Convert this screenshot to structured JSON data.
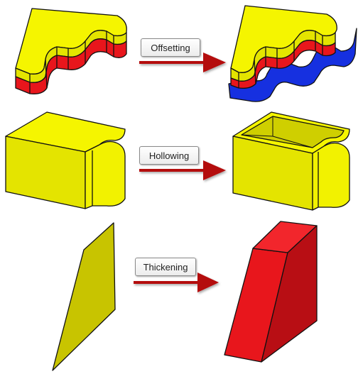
{
  "operations": [
    {
      "label": "Offsetting"
    },
    {
      "label": "Hollowing"
    },
    {
      "label": "Thickening"
    }
  ],
  "colors": {
    "yellow": "#f5f500",
    "yellow_side": "#e4e400",
    "olive_sheet": "#c8c400",
    "red": "#e8161c",
    "red_dark": "#b80e14",
    "blue": "#1630e0",
    "arrow": "#b40808",
    "outline": "#111111"
  }
}
